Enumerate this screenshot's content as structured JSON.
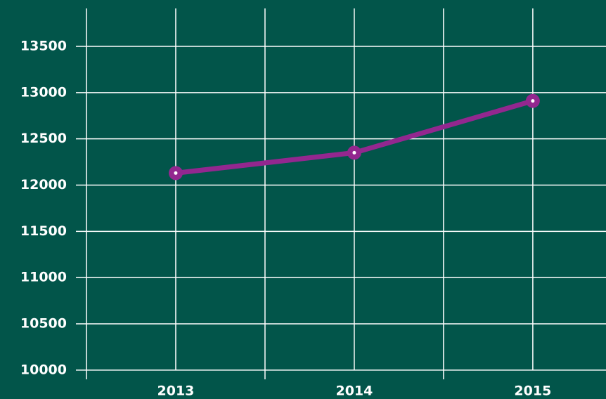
{
  "chart_data": {
    "type": "line",
    "x": [
      2013,
      2014,
      2015
    ],
    "series": [
      {
        "color": "#93278f",
        "values": [
          12130,
          12350,
          12910
        ]
      }
    ],
    "xlim": [
      2012.5,
      2015.41
    ],
    "xticks": [
      2013,
      2014,
      2015
    ],
    "x_minor_ticks": [
      2012.5,
      2013.5,
      2014.5
    ],
    "ylim": [
      9900,
      13910
    ],
    "yticks": [
      10000,
      10500,
      11000,
      11500,
      12000,
      12500,
      13000,
      13500
    ],
    "grid": true,
    "background": "#02554a"
  }
}
